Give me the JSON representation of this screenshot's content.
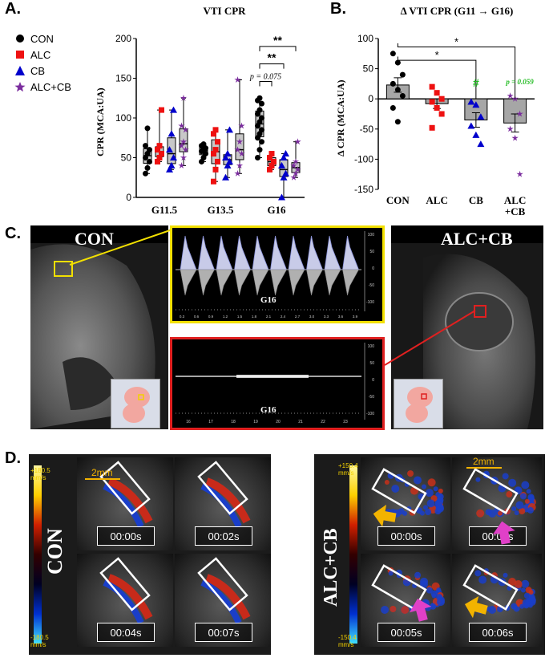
{
  "panels": {
    "a": "A.",
    "b": "B.",
    "c": "C.",
    "d": "D."
  },
  "chart_data": [
    {
      "type": "box",
      "title": "VTI CPR",
      "ylabel": "CPR (MCA:UA)",
      "ylim": [
        0,
        200
      ],
      "yticks": [
        "0",
        "50",
        "100",
        "150",
        "200"
      ],
      "categories": [
        "G11.5",
        "G13.5",
        "G16"
      ],
      "legend": [
        "CON",
        "ALC",
        "CB",
        "ALC+CB"
      ],
      "series": [
        {
          "name": "CON",
          "color": "#000000",
          "marker": "circle",
          "values": [
            [
              30,
              37,
              45,
              50,
              55,
              60,
              65,
              87
            ],
            [
              45,
              50,
              55,
              58,
              60,
              62,
              65,
              67
            ],
            [
              50,
              60,
              70,
              75,
              80,
              85,
              90,
              95,
              100,
              105,
              110,
              118,
              122,
              125
            ]
          ]
        },
        {
          "name": "ALC",
          "color": "#ee1111",
          "marker": "square",
          "values": [
            [
              45,
              50,
              55,
              60,
              65,
              110
            ],
            [
              20,
              35,
              45,
              55,
              60,
              70,
              80,
              85
            ],
            [
              35,
              40,
              45,
              50,
              55
            ]
          ]
        },
        {
          "name": "CB",
          "color": "#0000cc",
          "marker": "triangle",
          "values": [
            [
              35,
              40,
              50,
              60,
              80,
              110
            ],
            [
              25,
              40,
              45,
              50,
              55,
              85
            ],
            [
              0,
              25,
              30,
              40,
              50,
              55
            ]
          ]
        },
        {
          "name": "ALC+CB",
          "color": "#7b2d9e",
          "marker": "star",
          "values": [
            [
              40,
              50,
              60,
              65,
              70,
              85,
              90,
              125
            ],
            [
              30,
              40,
              55,
              60,
              70,
              90,
              148
            ],
            [
              25,
              30,
              35,
              40,
              45,
              70
            ]
          ]
        }
      ],
      "annotations": [
        "p = 0.075",
        "**",
        "**"
      ]
    },
    {
      "type": "bar",
      "title": "Δ VTI CPR (G11 → G16)",
      "ylabel": "Δ CPR (MCA:UA)",
      "ylim": [
        -150,
        100
      ],
      "yticks": [
        "-150",
        "-100",
        "-50",
        "0",
        "50",
        "100"
      ],
      "categories": [
        "CON",
        "ALC",
        "CB",
        "ALC\n+CB"
      ],
      "values": [
        23,
        -8,
        -35,
        -40
      ],
      "errors": [
        12,
        8,
        12,
        15
      ],
      "points": [
        [
          75,
          60,
          40,
          25,
          15,
          5,
          -15,
          -38
        ],
        [
          20,
          10,
          0,
          -5,
          -15,
          -25,
          -48
        ],
        [
          -5,
          -10,
          -30,
          -45,
          -60,
          -75
        ],
        [
          5,
          0,
          -25,
          -50,
          -65,
          -125
        ]
      ],
      "annotations": [
        "*",
        "*",
        "#",
        "p = 0.059"
      ]
    }
  ],
  "panel_c": {
    "left_label": "CON",
    "right_label": "ALC+CB",
    "top_doppler_label": "G16",
    "bottom_doppler_label": "G16",
    "top_ticks": [
      "0.3",
      "0.6",
      "0.9",
      "1.2",
      "1.5",
      "1.8",
      "2.1",
      "2.4",
      "2.7",
      "3.0",
      "3.3",
      "3.6",
      "3.9"
    ],
    "bottom_ticks": [
      "16",
      "17",
      "18",
      "19",
      "20",
      "21",
      "22",
      "23"
    ],
    "right_axis": [
      "100",
      "50",
      "0",
      "-50",
      "-100"
    ]
  },
  "panel_d": {
    "left_label": "CON",
    "right_label": "ALC+CB",
    "left_scale_top": "+180.5\nmm/s",
    "left_scale_bottom": "-180.5\nmm/s",
    "right_scale_top": "+150.4\nmm/s",
    "right_scale_bottom": "-150.4\nmm/s",
    "scale": "2mm",
    "left_times": [
      "00:00s",
      "00:02s",
      "00:04s",
      "00:07s"
    ],
    "right_times": [
      "00:00s",
      "00:02s",
      "00:05s",
      "00:06s"
    ],
    "accent_yellow": "#f2b300",
    "accent_pink": "#e040c8"
  }
}
